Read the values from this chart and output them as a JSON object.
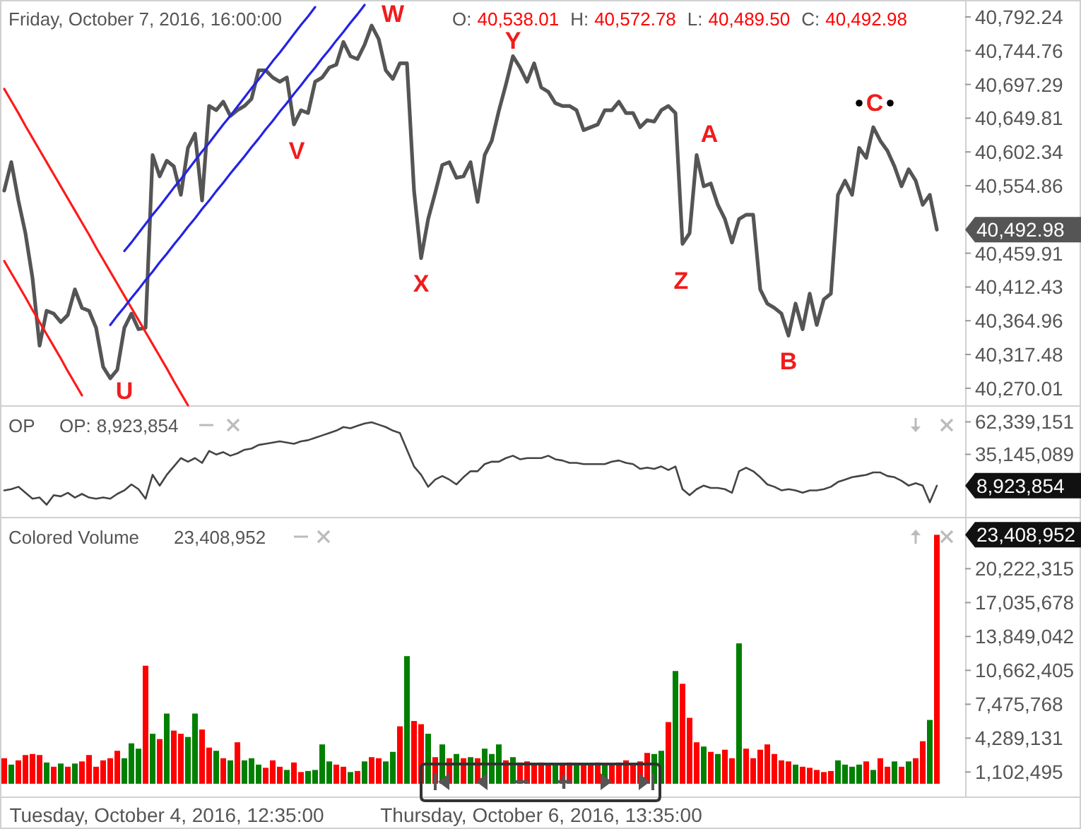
{
  "chart_data": [
    {
      "type": "line",
      "title": "Friday, October 7, 2016, 16:00:00",
      "annotations": [
        "O: 40,538.01",
        "H: 40,572.78",
        "L: 40,489.50",
        "C: 40,492.98",
        "U",
        "V",
        "W",
        "X",
        "Y",
        "Z",
        "A",
        "B",
        "C",
        "40,492.98"
      ],
      "categories": [
        null,
        null,
        null,
        null,
        null,
        null,
        null,
        null,
        null,
        null,
        null,
        null,
        null,
        null,
        null,
        null,
        null,
        null,
        null,
        null,
        null,
        null,
        null,
        null,
        null,
        null,
        null,
        null,
        null,
        null,
        null,
        null,
        null,
        null,
        null,
        null,
        null,
        null,
        null,
        null,
        null,
        null,
        null,
        null,
        null,
        null,
        null,
        null,
        null,
        null,
        null,
        null,
        null,
        null,
        null,
        null,
        null,
        null,
        null,
        null,
        null,
        null,
        null,
        null,
        null,
        null,
        null,
        null,
        null,
        null,
        null,
        null,
        null,
        null,
        null,
        null,
        null,
        null,
        null,
        null,
        null,
        null,
        null,
        null,
        null,
        null,
        null,
        null,
        null,
        null,
        null,
        null,
        null,
        null,
        null,
        null,
        null,
        null,
        null,
        null,
        null,
        null,
        null,
        null,
        null,
        null,
        null,
        null,
        null,
        null,
        null,
        null,
        null,
        null,
        null,
        null,
        null,
        null,
        null,
        null,
        null,
        null,
        null,
        null,
        null,
        null,
        null,
        null,
        null,
        null,
        null,
        null,
        null
      ],
      "ylim": [
        40246,
        40816
      ],
      "yticks": [
        {
          "value": 40270.01,
          "label": "40,270.01"
        },
        {
          "value": 40317.48,
          "label": "40,317.48"
        },
        {
          "value": 40364.96,
          "label": "40,364.96"
        },
        {
          "value": 40412.43,
          "label": "40,412.43"
        },
        {
          "value": 40459.91,
          "label": "40,459.91"
        },
        {
          "value": 40554.86,
          "label": "40,554.86"
        },
        {
          "value": 40602.34,
          "label": "40,602.34"
        },
        {
          "value": 40649.81,
          "label": "40,649.81"
        },
        {
          "value": 40697.29,
          "label": "40,697.29"
        },
        {
          "value": 40744.76,
          "label": "40,744.76"
        },
        {
          "value": 40792.24,
          "label": "40,792.24"
        }
      ],
      "series": [
        {
          "color": "#555555",
          "values": [
            40548,
            40588,
            40534,
            40488,
            40425,
            40330,
            40379,
            40375,
            40363,
            40373,
            40409,
            40383,
            40379,
            40355,
            40300,
            40284,
            40296,
            40355,
            40375,
            40353,
            40355,
            40598,
            40568,
            40590,
            40582,
            40542,
            40608,
            40628,
            40534,
            40667,
            40661,
            40673,
            40653,
            40661,
            40667,
            40677,
            40717,
            40717,
            40707,
            40701,
            40707,
            40641,
            40661,
            40657,
            40701,
            40707,
            40721,
            40725,
            40757,
            40737,
            40733,
            40753,
            40780,
            40761,
            40717,
            40705,
            40727,
            40727,
            40548,
            40453,
            40508,
            40545,
            40584,
            40588,
            40566,
            40568,
            40588,
            40532,
            40598,
            40618,
            40660,
            40697,
            40737,
            40721,
            40701,
            40727,
            40693,
            40687,
            40671,
            40667,
            40667,
            40661,
            40633,
            40637,
            40641,
            40661,
            40661,
            40673,
            40657,
            40657,
            40637,
            40647,
            40645,
            40661,
            40667,
            40657,
            40473,
            40488,
            40598,
            40554,
            40558,
            40528,
            40508,
            40475,
            40508,
            40514,
            40514,
            40409,
            40389,
            40383,
            40375,
            40344,
            40389,
            40353,
            40403,
            40359,
            40395,
            40403,
            40542,
            40562,
            40542,
            40608,
            40594,
            40637,
            40618,
            40604,
            40582,
            40554,
            40578,
            40562,
            40528,
            40542,
            40492.98
          ]
        },
        {
          "type": "line",
          "color": "#ff1a1a",
          "values": [
            40691,
            40674,
            40657,
            40639,
            40622,
            40605,
            40588,
            40571,
            40554,
            40537,
            40520,
            40503,
            40486,
            40468,
            40451,
            40434,
            40417,
            40400,
            40383,
            40366,
            40349,
            40332,
            40315,
            40298,
            40280,
            40263,
            40246,
            null,
            null,
            null,
            null,
            null,
            null,
            null,
            null,
            null,
            null,
            null,
            null,
            null,
            null,
            null,
            null,
            null,
            null,
            null,
            null,
            null,
            null,
            null,
            null,
            null,
            null,
            null,
            null,
            null,
            null,
            null,
            null,
            null,
            null,
            null,
            null,
            null,
            null,
            null,
            null,
            null,
            null,
            null,
            null,
            null,
            null,
            null,
            null,
            null,
            null,
            null,
            null,
            null,
            null,
            null,
            null,
            null,
            null,
            null,
            null,
            null,
            null,
            null,
            null,
            null,
            null,
            null,
            null,
            null,
            null,
            null,
            null,
            null,
            null,
            null,
            null,
            null,
            null,
            null,
            null,
            null,
            null,
            null,
            null,
            null,
            null,
            null,
            null,
            null,
            null,
            null,
            null,
            null,
            null,
            null,
            null,
            null,
            null,
            null,
            null,
            null,
            null,
            null,
            null,
            null,
            null
          ]
        },
        {
          "type": "line",
          "color": "#ff1a1a",
          "values": [
            40449,
            40432,
            40415,
            40398,
            40380,
            40363,
            40346,
            40329,
            40312,
            40294,
            40277,
            40260,
            null,
            null,
            null,
            null,
            null,
            null,
            null,
            null,
            null,
            null,
            null,
            null,
            null,
            null,
            null,
            null,
            null,
            null,
            null,
            null,
            null,
            null,
            null,
            null,
            null,
            null,
            null,
            null,
            null,
            null,
            null,
            null,
            null,
            null,
            null,
            null,
            null,
            null,
            null,
            null,
            null,
            null,
            null,
            null,
            null,
            null,
            null,
            null,
            null,
            null,
            null,
            null,
            null,
            null,
            null,
            null,
            null,
            null,
            null,
            null,
            null,
            null,
            null,
            null,
            null,
            null,
            null,
            null,
            null,
            null,
            null,
            null,
            null,
            null,
            null,
            null,
            null,
            null,
            null,
            null,
            null,
            null,
            null,
            null,
            null,
            null,
            null,
            null,
            null,
            null,
            null,
            null,
            null,
            null,
            null,
            null,
            null,
            null,
            null,
            null,
            null,
            null,
            null,
            null,
            null,
            null,
            null,
            null,
            null,
            null,
            null,
            null,
            null,
            null,
            null,
            null,
            null,
            null,
            null,
            null,
            null
          ]
        },
        {
          "type": "line",
          "color": "#2323e6",
          "values": [
            null,
            null,
            null,
            null,
            null,
            null,
            null,
            null,
            null,
            null,
            null,
            null,
            null,
            null,
            null,
            null,
            null,
            40463,
            40475,
            40488,
            40501,
            40514,
            40526,
            40539,
            40552,
            40564,
            40577,
            40590,
            40603,
            40615,
            40628,
            40641,
            40653,
            40666,
            40679,
            40692,
            40704,
            40717,
            40730,
            40742,
            40755,
            40768,
            40781,
            40793,
            40806,
            null,
            null,
            null,
            null,
            null,
            null,
            null,
            null,
            null,
            null,
            null,
            null,
            null,
            null,
            null,
            null,
            null,
            null,
            null,
            null,
            null,
            null,
            null,
            null,
            null,
            null,
            null,
            null,
            null,
            null,
            null,
            null,
            null,
            null,
            null,
            null,
            null,
            null,
            null,
            null,
            null,
            null,
            null,
            null,
            null,
            null,
            null,
            null,
            null,
            null,
            null,
            null,
            null,
            null,
            null,
            null,
            null,
            null,
            null,
            null,
            null,
            null,
            null,
            null,
            null,
            null,
            null,
            null,
            null,
            null,
            null,
            null,
            null,
            null,
            null,
            null,
            null,
            null,
            null,
            null,
            null,
            null,
            null,
            null,
            null,
            null,
            null,
            null
          ]
        },
        {
          "type": "line",
          "color": "#2323e6",
          "values": [
            null,
            null,
            null,
            null,
            null,
            null,
            null,
            null,
            null,
            null,
            null,
            null,
            null,
            null,
            null,
            40359,
            40372,
            40384,
            40397,
            40409,
            40422,
            40434,
            40447,
            40459,
            40472,
            40484,
            40497,
            40509,
            40522,
            40534,
            40547,
            40559,
            40572,
            40584,
            40596,
            40609,
            40621,
            40634,
            40646,
            40659,
            40671,
            40684,
            40696,
            40709,
            40721,
            40734,
            40746,
            40759,
            40771,
            40784,
            40796,
            40809,
            null,
            null,
            null,
            null,
            null,
            null,
            null,
            null,
            null,
            null,
            null,
            null,
            null,
            null,
            null,
            null,
            null,
            null,
            null,
            null,
            null,
            null,
            null,
            null,
            null,
            null,
            null,
            null,
            null,
            null,
            null,
            null,
            null,
            null,
            null,
            null,
            null,
            null,
            null,
            null,
            null,
            null,
            null,
            null,
            null,
            null,
            null,
            null,
            null,
            null,
            null,
            null,
            null,
            null,
            null,
            null,
            null,
            null,
            null,
            null,
            null,
            null,
            null,
            null,
            null,
            null,
            null,
            null,
            null,
            null,
            null,
            null,
            null,
            null,
            null,
            null,
            null,
            null,
            null,
            null,
            null
          ]
        }
      ]
    },
    {
      "type": "line",
      "title": "OP",
      "annotations": [
        "OP: 8,923,854",
        "8,923,854"
      ],
      "categories": [
        null,
        null,
        null,
        null,
        null,
        null,
        null,
        null,
        null,
        null,
        null,
        null,
        null,
        null,
        null,
        null,
        null,
        null,
        null,
        null,
        null,
        null,
        null,
        null,
        null,
        null,
        null,
        null,
        null,
        null,
        null,
        null,
        null,
        null,
        null,
        null,
        null,
        null,
        null,
        null,
        null,
        null,
        null,
        null,
        null,
        null,
        null,
        null,
        null,
        null,
        null,
        null,
        null,
        null,
        null,
        null,
        null,
        null,
        null,
        null,
        null,
        null,
        null,
        null,
        null,
        null,
        null,
        null,
        null,
        null,
        null,
        null,
        null,
        null,
        null,
        null,
        null,
        null,
        null,
        null,
        null,
        null,
        null,
        null,
        null,
        null,
        null,
        null,
        null,
        null,
        null,
        null,
        null,
        null,
        null,
        null,
        null,
        null,
        null,
        null,
        null,
        null,
        null,
        null,
        null,
        null,
        null,
        null,
        null,
        null,
        null,
        null,
        null,
        null,
        null,
        null,
        null,
        null,
        null,
        null,
        null,
        null,
        null,
        null,
        null,
        null,
        null,
        null,
        null,
        null,
        null,
        null,
        null
      ],
      "ylim": [
        -17200000,
        75000000
      ],
      "yticks": [
        {
          "value": 35145089,
          "label": "35,145,089"
        },
        {
          "value": 62339151,
          "label": "62,339,151"
        }
      ],
      "series": [
        {
          "color": "#444444",
          "values": [
            5000000,
            6000000,
            8000000,
            3000000,
            -2000000,
            -1000000,
            -7000000,
            1000000,
            0,
            3000000,
            -1000000,
            2000000,
            -1000000,
            -2000000,
            -1000000,
            -2000000,
            2000000,
            5000000,
            10000000,
            6000000,
            -2000000,
            18000000,
            9000000,
            18000000,
            25000000,
            32000000,
            29000000,
            32000000,
            28000000,
            38000000,
            35000000,
            37000000,
            34000000,
            36000000,
            39000000,
            40000000,
            43000000,
            44000000,
            45000000,
            46000000,
            45000000,
            44000000,
            46000000,
            47000000,
            49000000,
            51000000,
            53000000,
            55000000,
            58000000,
            57000000,
            59000000,
            61000000,
            62000000,
            60000000,
            58000000,
            55000000,
            53000000,
            39000000,
            25000000,
            18000000,
            8000000,
            14000000,
            17000000,
            14000000,
            10000000,
            16000000,
            21000000,
            21000000,
            27000000,
            29000000,
            29000000,
            32000000,
            34000000,
            31000000,
            32000000,
            32000000,
            32000000,
            34000000,
            31000000,
            30000000,
            28000000,
            28000000,
            27000000,
            27000000,
            27000000,
            27000000,
            29000000,
            30000000,
            28000000,
            27000000,
            23000000,
            24000000,
            23000000,
            25000000,
            22000000,
            25000000,
            6000000,
            1000000,
            6000000,
            9000000,
            7000000,
            7000000,
            6000000,
            3000000,
            21000000,
            24000000,
            21000000,
            16000000,
            10000000,
            8000000,
            5000000,
            6000000,
            5000000,
            3000000,
            5000000,
            5000000,
            6000000,
            8000000,
            12000000,
            14000000,
            16000000,
            17000000,
            18000000,
            20000000,
            20000000,
            17000000,
            16000000,
            13000000,
            9000000,
            11000000,
            9000000,
            -5000000,
            8923854
          ]
        }
      ]
    },
    {
      "type": "bar",
      "title": "Colored Volume",
      "annotations": [
        "23,408,952",
        "23,408,952"
      ],
      "categories": [
        null,
        null,
        null,
        null,
        null,
        null,
        null,
        null,
        null,
        null,
        null,
        null,
        null,
        null,
        null,
        null,
        null,
        null,
        null,
        null,
        null,
        null,
        null,
        "Tuesday, October 4, 2016, 12:35:00",
        null,
        null,
        null,
        null,
        null,
        null,
        null,
        null,
        null,
        null,
        null,
        null,
        null,
        null,
        null,
        null,
        null,
        null,
        null,
        null,
        null,
        null,
        null,
        null,
        null,
        null,
        null,
        null,
        null,
        null,
        null,
        null,
        null,
        null,
        null,
        null,
        null,
        null,
        null,
        null,
        null,
        null,
        null,
        null,
        null,
        null,
        null,
        null,
        null,
        null,
        null,
        null,
        "Thursday, October 6, 2016, 13:35:00",
        null,
        null,
        null,
        null,
        null,
        null,
        null,
        null,
        null,
        null,
        null,
        null,
        null,
        null,
        null,
        null,
        null,
        null,
        null,
        null,
        null,
        null,
        null,
        null,
        null,
        null,
        null,
        null,
        null,
        null,
        null,
        null,
        null,
        null,
        null,
        null,
        null,
        null,
        null,
        null,
        null,
        null,
        null,
        null,
        null,
        null,
        null,
        null,
        null,
        null,
        null,
        null,
        null,
        null,
        null,
        null
      ],
      "ylim": [
        -1200000,
        24960000
      ],
      "yticks": [
        {
          "value": 1102495,
          "label": "1,102,495"
        },
        {
          "value": 4289131,
          "label": "4,289,131"
        },
        {
          "value": 7475768,
          "label": "7,475,768"
        },
        {
          "value": 10662405,
          "label": "10,662,405"
        },
        {
          "value": 13849042,
          "label": "13,849,042"
        },
        {
          "value": 17035678,
          "label": "17,035,678"
        },
        {
          "value": 20222315,
          "label": "20,222,315"
        }
      ],
      "values": [
        2400000,
        1800000,
        2200000,
        2700000,
        2800000,
        2700000,
        2000000,
        1600000,
        1900000,
        1600000,
        1900000,
        2100000,
        2700000,
        1600000,
        2200000,
        2400000,
        3100000,
        2400000,
        3800000,
        3300000,
        11100000,
        4700000,
        4200000,
        6600000,
        5000000,
        4700000,
        4400000,
        6600000,
        5100000,
        3400000,
        3100000,
        2400000,
        2200000,
        3900000,
        2200000,
        2400000,
        1800000,
        1500000,
        2200000,
        1600000,
        1300000,
        2000000,
        1100000,
        1200000,
        1300000,
        3700000,
        2100000,
        1800000,
        1600000,
        1100000,
        1200000,
        2100000,
        2500000,
        2400000,
        2100000,
        3000000,
        5400000,
        12000000,
        5900000,
        5600000,
        4700000,
        2500000,
        3700000,
        2400000,
        2800000,
        2400000,
        2500000,
        2400000,
        3300000,
        2800000,
        3700000,
        2200000,
        2500000,
        2000000,
        2100000,
        1900000,
        2000000,
        1800000,
        1800000,
        1900000,
        2000000,
        1800000,
        1800000,
        1900000,
        2000000,
        1900000,
        1800000,
        2000000,
        2200000,
        1800000,
        2100000,
        2900000,
        2800000,
        3100000,
        5800000,
        10600000,
        9400000,
        6200000,
        3900000,
        3500000,
        3000000,
        2800000,
        3200000,
        2400000,
        13200000,
        3300000,
        2400000,
        3200000,
        3700000,
        2800000,
        2200000,
        2100000,
        1800000,
        1600000,
        1500000,
        1300000,
        1100000,
        1200000,
        2200000,
        1800000,
        1600000,
        1800000,
        2100000,
        1300000,
        2400000,
        1600000,
        2100000,
        1600000,
        2100000,
        2400000,
        4000000,
        6000000,
        23408952
      ],
      "colors": [
        "#ff0000",
        "#008000",
        "#ff0000",
        "#ff0000",
        "#ff0000",
        "#ff0000",
        "#008000",
        "#ff0000",
        "#008000",
        "#ff0000",
        "#008000",
        "#ff0000",
        "#ff0000",
        "#ff0000",
        "#ff0000",
        "#ff0000",
        "#ff0000",
        "#008000",
        "#008000",
        "#008000",
        "#ff0000",
        "#008000",
        "#ff0000",
        "#008000",
        "#ff0000",
        "#ff0000",
        "#008000",
        "#008000",
        "#ff0000",
        "#ff0000",
        "#008000",
        "#ff0000",
        "#008000",
        "#ff0000",
        "#008000",
        "#008000",
        "#008000",
        "#ff0000",
        "#ff0000",
        "#ff0000",
        "#008000",
        "#ff0000",
        "#ff0000",
        "#008000",
        "#008000",
        "#008000",
        "#008000",
        "#ff0000",
        "#ff0000",
        "#008000",
        "#ff0000",
        "#008000",
        "#ff0000",
        "#ff0000",
        "#008000",
        "#008000",
        "#ff0000",
        "#008000",
        "#ff0000",
        "#ff0000",
        "#008000",
        "#ff0000",
        "#008000",
        "#ff0000",
        "#008000",
        "#ff0000",
        "#008000",
        "#ff0000",
        "#008000",
        "#008000",
        "#008000",
        "#ff0000",
        "#008000",
        "#ff0000",
        "#ff0000",
        "#ff0000",
        "#ff0000",
        "#ff0000",
        "#008000",
        "#ff0000",
        "#ff0000",
        "#008000",
        "#ff0000",
        "#ff0000",
        "#ff0000",
        "#008000",
        "#ff0000",
        "#ff0000",
        "#ff0000",
        "#ff0000",
        "#ff0000",
        "#ff0000",
        "#008000",
        "#008000",
        "#ff0000",
        "#008000",
        "#ff0000",
        "#ff0000",
        "#ff0000",
        "#008000",
        "#ff0000",
        "#008000",
        "#ff0000",
        "#ff0000",
        "#008000",
        "#ff0000",
        "#ff0000",
        "#ff0000",
        "#ff0000",
        "#ff0000",
        "#ff0000",
        "#ff0000",
        "#008000",
        "#ff0000",
        "#ff0000",
        "#ff0000",
        "#ff0000",
        "#ff0000",
        "#008000",
        "#008000",
        "#008000",
        "#008000",
        "#ff0000",
        "#008000",
        "#ff0000",
        "#ff0000",
        "#008000",
        "#ff0000",
        "#008000",
        "#ff0000",
        "#ff0000",
        "#008000",
        "#ff0000"
      ]
    }
  ]
}
